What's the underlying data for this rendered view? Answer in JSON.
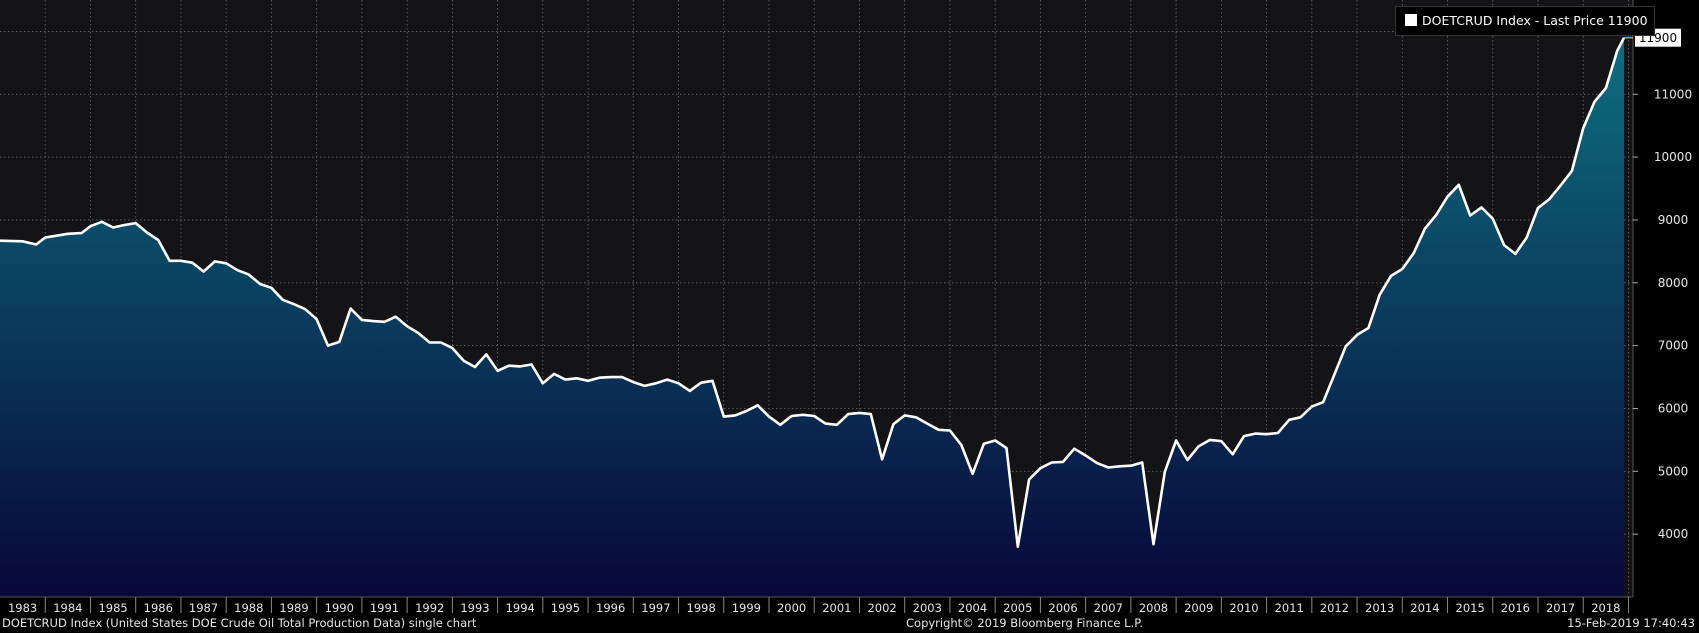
{
  "legend": {
    "label": "DOETCRUD Index - Last Price 11900"
  },
  "last_price_tag": "11900",
  "footer": {
    "left": "DOETCRUD Index (United States DOE Crude Oil Total Production Data) single chart",
    "center": "Copyright© 2019 Bloomberg Finance L.P.",
    "right": "15-Feb-2019 17:40:43"
  },
  "colors": {
    "background": "#141416",
    "line": "#ffffff",
    "fill_top": "#0d6f80",
    "fill_bottom": "#07073a",
    "last_price_marker": "#f39c12"
  },
  "chart_data": {
    "type": "area",
    "title": "",
    "xlabel": "",
    "ylabel": "",
    "ylim": [
      3000,
      12500
    ],
    "xlim": [
      1983.0,
      2019.1
    ],
    "yticks": [
      4000,
      5000,
      6000,
      7000,
      8000,
      9000,
      10000,
      11000
    ],
    "ytick_labels": [
      "4000",
      "5000",
      "6000",
      "7000",
      "8000",
      "9000",
      "10000",
      "11000"
    ],
    "xtick_labels": [
      "1983",
      "1984",
      "1985",
      "1986",
      "1987",
      "1988",
      "1989",
      "1990",
      "1991",
      "1992",
      "1993",
      "1994",
      "1995",
      "1996",
      "1997",
      "1998",
      "1999",
      "2000",
      "2001",
      "2002",
      "2003",
      "2004",
      "2005",
      "2006",
      "2007",
      "2008",
      "2009",
      "2010",
      "2011",
      "2012",
      "2013",
      "2014",
      "2015",
      "2016",
      "2017",
      "2018"
    ],
    "grid": true,
    "legend_position": "top-right",
    "y_axis_side": "right",
    "series": [
      {
        "name": "DOETCRUD Index",
        "x": [
          1983.0,
          1983.5,
          1983.8,
          1984.0,
          1984.25,
          1984.5,
          1984.8,
          1985.0,
          1985.25,
          1985.5,
          1985.75,
          1986.0,
          1986.25,
          1986.5,
          1986.75,
          1987.0,
          1987.25,
          1987.5,
          1987.75,
          1988.0,
          1988.25,
          1988.5,
          1988.75,
          1989.0,
          1989.25,
          1989.5,
          1989.75,
          1990.0,
          1990.25,
          1990.5,
          1990.75,
          1991.0,
          1991.25,
          1991.5,
          1991.75,
          1992.0,
          1992.25,
          1992.5,
          1992.75,
          1993.0,
          1993.25,
          1993.5,
          1993.75,
          1994.0,
          1994.25,
          1994.5,
          1994.75,
          1995.0,
          1995.25,
          1995.5,
          1995.75,
          1996.0,
          1996.25,
          1996.5,
          1996.75,
          1997.0,
          1997.25,
          1997.5,
          1997.75,
          1998.0,
          1998.25,
          1998.5,
          1998.75,
          1999.0,
          1999.25,
          1999.5,
          1999.75,
          2000.0,
          2000.25,
          2000.5,
          2000.75,
          2001.0,
          2001.25,
          2001.5,
          2001.75,
          2002.0,
          2002.25,
          2002.5,
          2002.75,
          2003.0,
          2003.25,
          2003.5,
          2003.75,
          2004.0,
          2004.25,
          2004.5,
          2004.75,
          2005.0,
          2005.25,
          2005.5,
          2005.75,
          2006.0,
          2006.25,
          2006.5,
          2006.75,
          2007.0,
          2007.25,
          2007.5,
          2007.75,
          2008.0,
          2008.25,
          2008.5,
          2008.75,
          2009.0,
          2009.25,
          2009.5,
          2009.75,
          2010.0,
          2010.25,
          2010.5,
          2010.75,
          2011.0,
          2011.25,
          2011.5,
          2011.75,
          2012.0,
          2012.25,
          2012.5,
          2012.75,
          2013.0,
          2013.25,
          2013.5,
          2013.75,
          2014.0,
          2014.25,
          2014.5,
          2014.75,
          2015.0,
          2015.25,
          2015.5,
          2015.75,
          2016.0,
          2016.25,
          2016.5,
          2016.75,
          2017.0,
          2017.25,
          2017.5,
          2017.75,
          2018.0,
          2018.25,
          2018.5,
          2018.75,
          2018.9
        ],
        "values": [
          8670,
          8660,
          8610,
          8720,
          8750,
          8780,
          8790,
          8900,
          8970,
          8880,
          8920,
          8950,
          8800,
          8680,
          8350,
          8350,
          8320,
          8180,
          8340,
          8310,
          8200,
          8130,
          7980,
          7920,
          7730,
          7660,
          7580,
          7420,
          7000,
          7060,
          7590,
          7410,
          7390,
          7380,
          7460,
          7310,
          7200,
          7050,
          7050,
          6960,
          6760,
          6660,
          6860,
          6600,
          6680,
          6670,
          6700,
          6400,
          6550,
          6460,
          6480,
          6440,
          6490,
          6500,
          6500,
          6420,
          6360,
          6400,
          6460,
          6400,
          6280,
          6410,
          6440,
          5870,
          5890,
          5960,
          6050,
          5870,
          5740,
          5880,
          5900,
          5880,
          5760,
          5740,
          5910,
          5930,
          5910,
          5190,
          5750,
          5890,
          5860,
          5760,
          5660,
          5650,
          5420,
          4960,
          5440,
          5490,
          5370,
          3800,
          4870,
          5050,
          5140,
          5150,
          5360,
          5250,
          5130,
          5060,
          5080,
          5090,
          5140,
          3840,
          4990,
          5490,
          5180,
          5400,
          5500,
          5480,
          5270,
          5560,
          5600,
          5590,
          5610,
          5820,
          5860,
          6030,
          6100,
          6540,
          6990,
          7170,
          7280,
          7810,
          8110,
          8220,
          8470,
          8860,
          9080,
          9370,
          9560,
          9070,
          9200,
          9020,
          8600,
          8460,
          8720,
          9190,
          9330,
          9550,
          9780,
          10460,
          10880,
          11100,
          11690,
          11900
        ]
      }
    ]
  }
}
